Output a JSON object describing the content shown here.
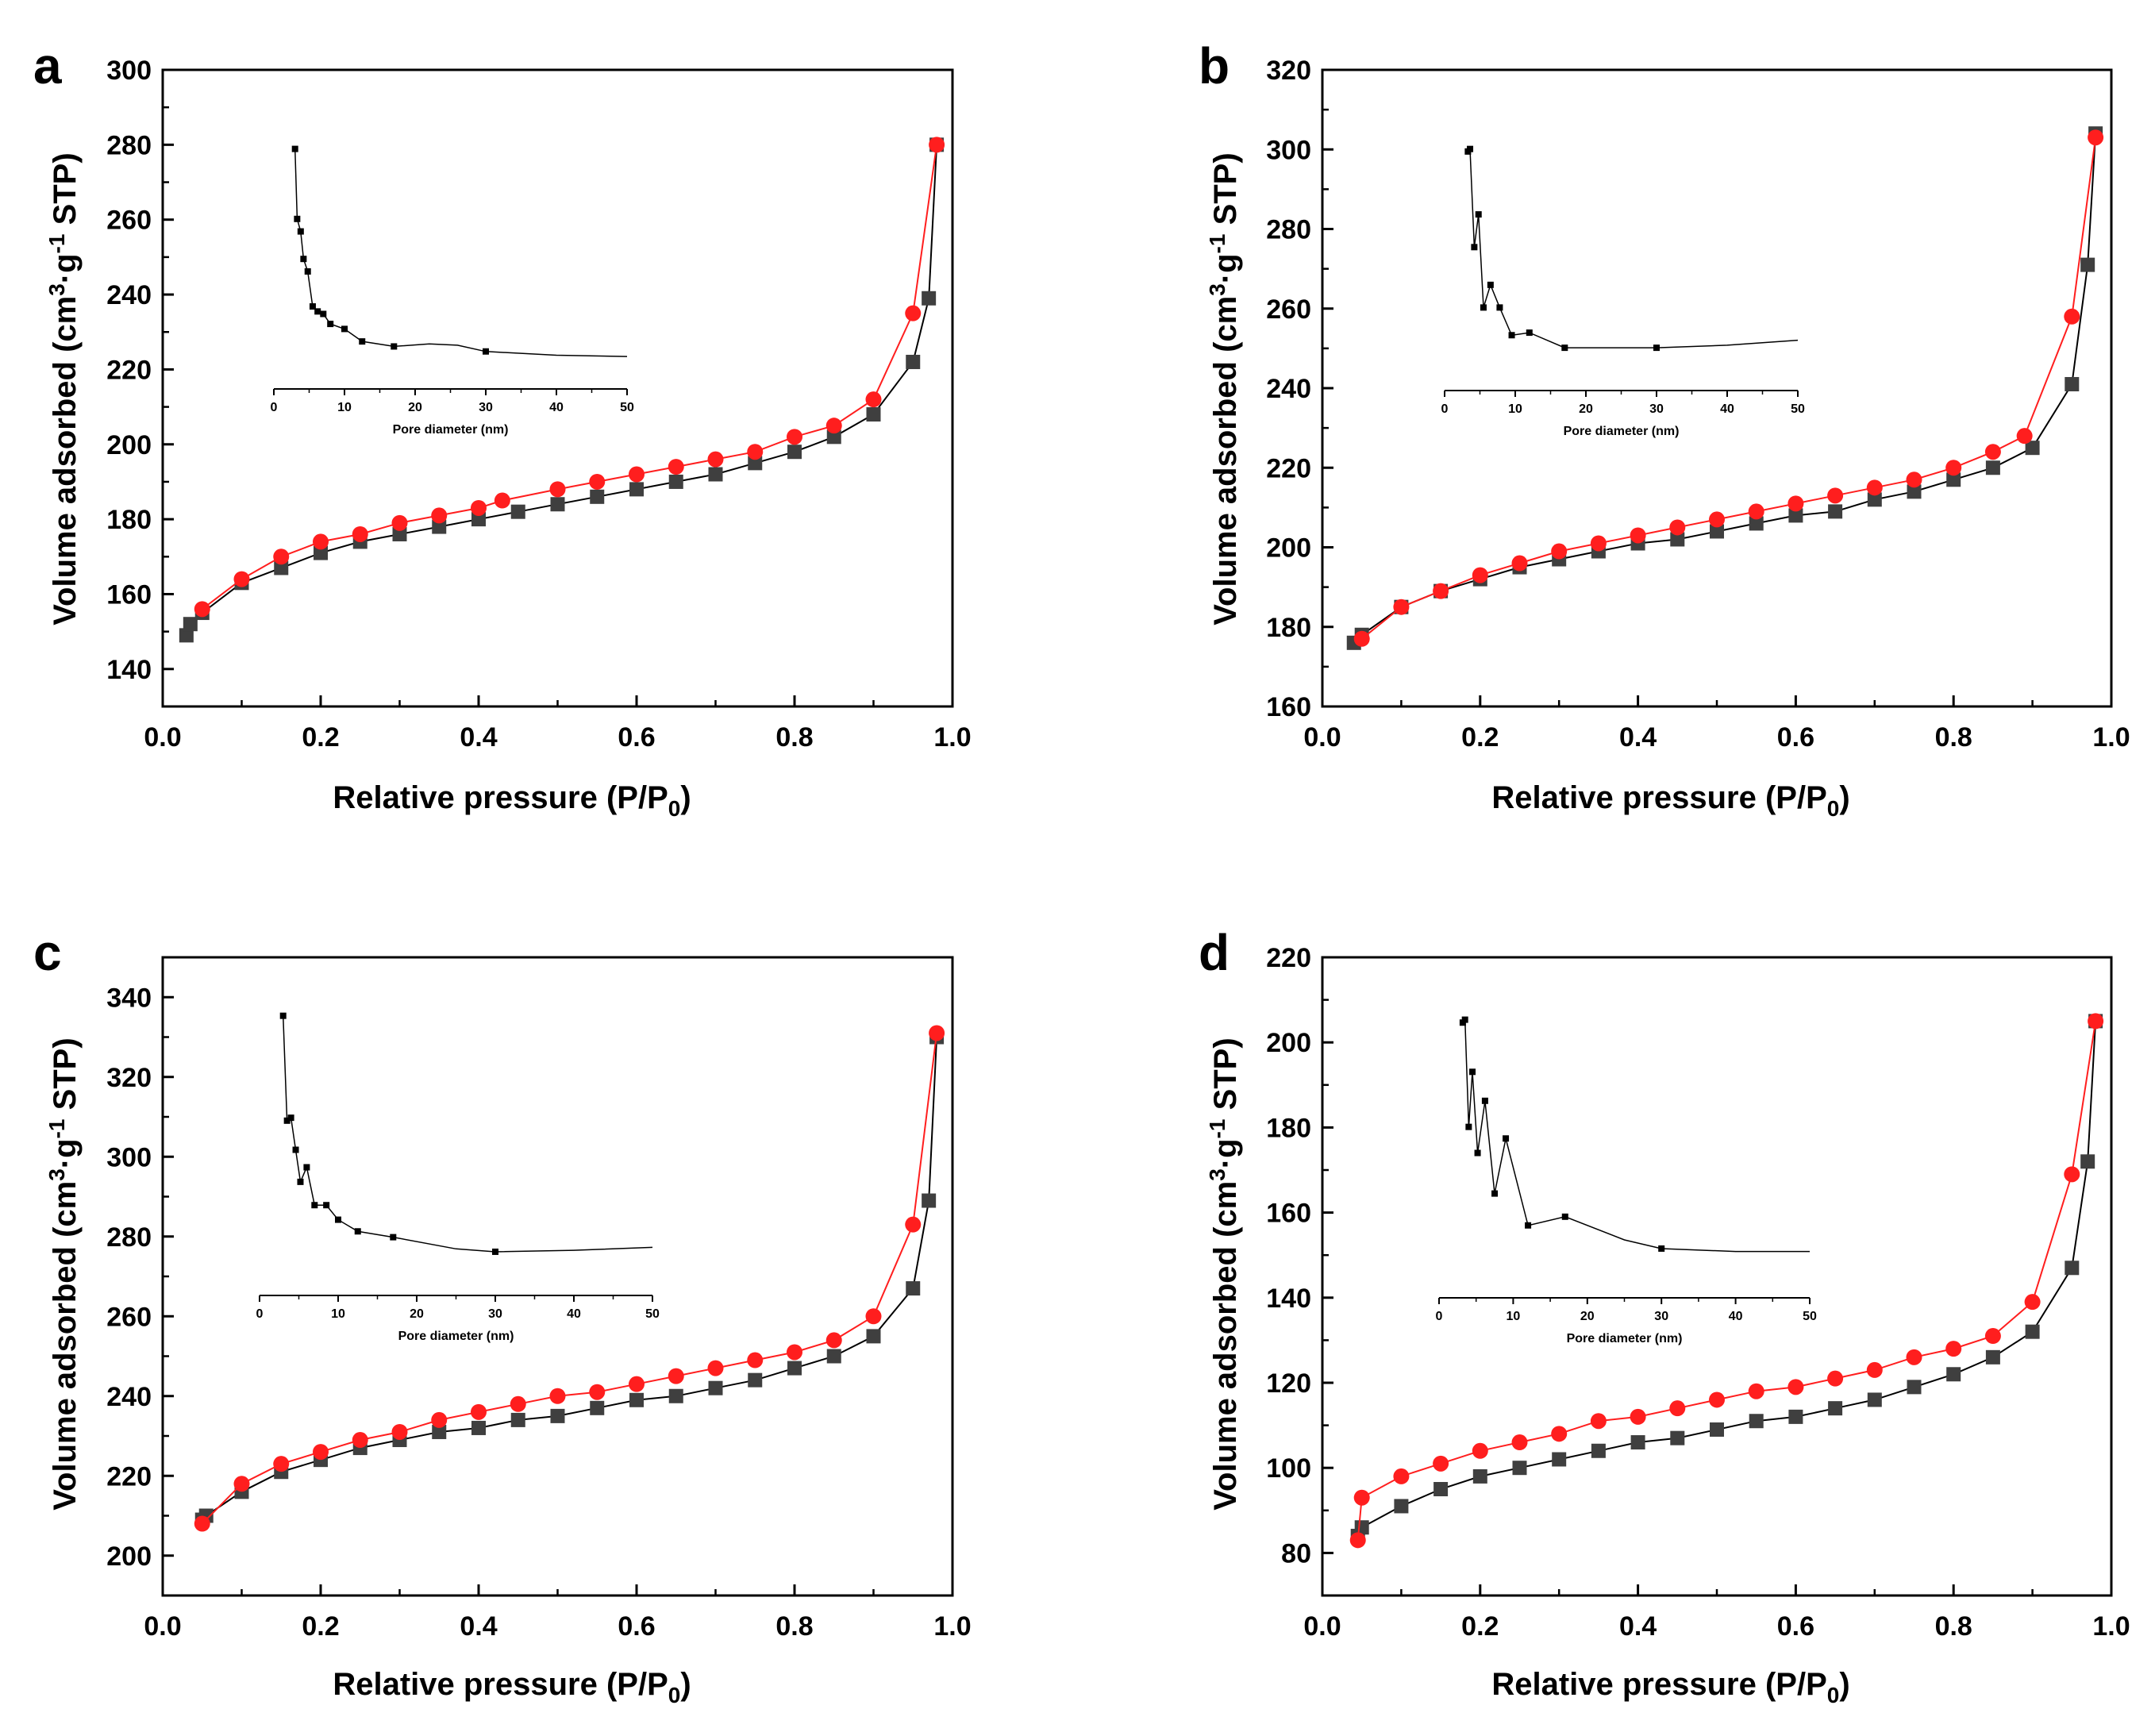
{
  "panels": [
    {
      "letter": "a",
      "chart_data": {
        "type": "line",
        "xlabel": {
          "main": "Relative pressure (P/P",
          "sub": "0",
          "end": ")"
        },
        "ylabel": {
          "main": "Volume adsorbed (cm",
          "sup1": "3",
          "mid": "·g",
          "sup2": "-1",
          "end": " STP)"
        },
        "xlim": [
          0.0,
          1.0
        ],
        "ylim": [
          130,
          300
        ],
        "xticks": [
          0.0,
          0.2,
          0.4,
          0.6,
          0.8,
          1.0
        ],
        "yticks": [
          140,
          160,
          180,
          200,
          220,
          240,
          260,
          280,
          300
        ],
        "grid": false,
        "series": [
          {
            "marker": "square",
            "color": "#3f3f3f",
            "line_color": "#000000",
            "x": [
              0.03,
              0.035,
              0.05,
              0.1,
              0.15,
              0.2,
              0.25,
              0.3,
              0.35,
              0.4,
              0.45,
              0.5,
              0.55,
              0.6,
              0.65,
              0.7,
              0.75,
              0.8,
              0.85,
              0.9,
              0.95,
              0.97,
              0.98
            ],
            "y": [
              149,
              152,
              155,
              163,
              167,
              171,
              174,
              176,
              178,
              180,
              182,
              184,
              186,
              188,
              190,
              192,
              195,
              198,
              202,
              208,
              222,
              239,
              280
            ]
          },
          {
            "marker": "circle",
            "color": "#ff1e1e",
            "line_color": "#ff1e1e",
            "x": [
              0.05,
              0.1,
              0.15,
              0.2,
              0.25,
              0.3,
              0.35,
              0.4,
              0.43,
              0.5,
              0.55,
              0.6,
              0.65,
              0.7,
              0.75,
              0.8,
              0.85,
              0.9,
              0.95,
              0.98
            ],
            "y": [
              156,
              164,
              170,
              174,
              176,
              179,
              181,
              183,
              185,
              188,
              190,
              192,
              194,
              196,
              198,
              202,
              205,
              212,
              235,
              280
            ]
          }
        ],
        "inset": {
          "xlabel": "Pore diameter (nm)",
          "xlim": [
            0,
            50
          ],
          "xticks": [
            0,
            10,
            20,
            30,
            40,
            50
          ],
          "ylim": [
            0,
            1
          ],
          "x": [
            3,
            3.3,
            3.8,
            4.2,
            4.8,
            5.5,
            6.2,
            7,
            8,
            10,
            12.5,
            17,
            22,
            26,
            30,
            40,
            50
          ],
          "y": [
            0.96,
            0.68,
            0.63,
            0.52,
            0.47,
            0.33,
            0.31,
            0.3,
            0.26,
            0.24,
            0.19,
            0.17,
            0.18,
            0.175,
            0.15,
            0.135,
            0.13
          ],
          "markers": [
            0,
            1,
            2,
            3,
            4,
            5,
            6,
            7,
            8,
            9,
            10,
            11,
            14
          ]
        }
      }
    },
    {
      "letter": "b",
      "chart_data": {
        "type": "line",
        "xlabel": {
          "main": "Relative pressure (P/P",
          "sub": "0",
          "end": ")"
        },
        "ylabel": {
          "main": "Volume adsorbed (cm",
          "sup1": "3",
          "mid": "·g",
          "sup2": "-1",
          "end": " STP)"
        },
        "xlim": [
          0.0,
          1.0
        ],
        "ylim": [
          160,
          320
        ],
        "xticks": [
          0.0,
          0.2,
          0.4,
          0.6,
          0.8,
          1.0
        ],
        "yticks": [
          160,
          180,
          200,
          220,
          240,
          260,
          280,
          300,
          320
        ],
        "grid": false,
        "series": [
          {
            "marker": "square",
            "color": "#3f3f3f",
            "line_color": "#000000",
            "x": [
              0.04,
              0.05,
              0.1,
              0.15,
              0.2,
              0.25,
              0.3,
              0.35,
              0.4,
              0.45,
              0.5,
              0.55,
              0.6,
              0.65,
              0.7,
              0.75,
              0.8,
              0.85,
              0.9,
              0.95,
              0.97,
              0.98
            ],
            "y": [
              176,
              178,
              185,
              189,
              192,
              195,
              197,
              199,
              201,
              202,
              204,
              206,
              208,
              209,
              212,
              214,
              217,
              220,
              225,
              241,
              271,
              304
            ]
          },
          {
            "marker": "circle",
            "color": "#ff1e1e",
            "line_color": "#ff1e1e",
            "x": [
              0.05,
              0.1,
              0.15,
              0.2,
              0.25,
              0.3,
              0.35,
              0.4,
              0.45,
              0.5,
              0.55,
              0.6,
              0.65,
              0.7,
              0.75,
              0.8,
              0.85,
              0.89,
              0.95,
              0.98
            ],
            "y": [
              177,
              185,
              189,
              193,
              196,
              199,
              201,
              203,
              205,
              207,
              209,
              211,
              213,
              215,
              217,
              220,
              224,
              228,
              258,
              303
            ]
          }
        ],
        "inset": {
          "xlabel": "Pore diameter (nm)",
          "xlim": [
            0,
            50
          ],
          "xticks": [
            0,
            10,
            20,
            30,
            40,
            50
          ],
          "ylim": [
            0,
            1
          ],
          "x": [
            3.3,
            3.6,
            4.2,
            4.8,
            5.5,
            6.5,
            7.8,
            9.5,
            12,
            17,
            25,
            30,
            40,
            50
          ],
          "y": [
            0.95,
            0.96,
            0.57,
            0.7,
            0.33,
            0.42,
            0.33,
            0.22,
            0.23,
            0.17,
            0.17,
            0.17,
            0.18,
            0.2
          ],
          "markers": [
            0,
            1,
            2,
            3,
            4,
            5,
            6,
            7,
            8,
            9,
            11
          ]
        }
      }
    },
    {
      "letter": "c",
      "chart_data": {
        "type": "line",
        "xlabel": {
          "main": "Relative pressure (P/P",
          "sub": "0",
          "end": ")"
        },
        "ylabel": {
          "main": "Volume adsorbed (cm",
          "sup1": "3",
          "mid": "·g",
          "sup2": "-1",
          "end": " STP)"
        },
        "xlim": [
          0.0,
          1.0
        ],
        "ylim": [
          190,
          350
        ],
        "xticks": [
          0.0,
          0.2,
          0.4,
          0.6,
          0.8,
          1.0
        ],
        "yticks": [
          200,
          220,
          240,
          260,
          280,
          300,
          320,
          340
        ],
        "grid": false,
        "series": [
          {
            "marker": "square",
            "color": "#3f3f3f",
            "line_color": "#000000",
            "x": [
              0.05,
              0.055,
              0.1,
              0.15,
              0.2,
              0.25,
              0.3,
              0.35,
              0.4,
              0.45,
              0.5,
              0.55,
              0.6,
              0.65,
              0.7,
              0.75,
              0.8,
              0.85,
              0.9,
              0.95,
              0.97,
              0.98
            ],
            "y": [
              209,
              210,
              216,
              221,
              224,
              227,
              229,
              231,
              232,
              234,
              235,
              237,
              239,
              240,
              242,
              244,
              247,
              250,
              255,
              267,
              289,
              330
            ]
          },
          {
            "marker": "circle",
            "color": "#ff1e1e",
            "line_color": "#ff1e1e",
            "x": [
              0.05,
              0.1,
              0.15,
              0.2,
              0.25,
              0.3,
              0.35,
              0.4,
              0.45,
              0.5,
              0.55,
              0.6,
              0.65,
              0.7,
              0.75,
              0.8,
              0.85,
              0.9,
              0.95,
              0.98
            ],
            "y": [
              208,
              218,
              223,
              226,
              229,
              231,
              234,
              236,
              238,
              240,
              241,
              243,
              245,
              247,
              249,
              251,
              254,
              260,
              283,
              331
            ]
          }
        ],
        "inset": {
          "xlabel": "Pore diameter (nm)",
          "xlim": [
            0,
            50
          ],
          "xticks": [
            0,
            10,
            20,
            30,
            40,
            50
          ],
          "ylim": [
            0,
            1
          ],
          "x": [
            3,
            3.5,
            4,
            4.6,
            5.2,
            6,
            7,
            8.5,
            10,
            12.5,
            17,
            25,
            30,
            40,
            50
          ],
          "y": [
            0.96,
            0.6,
            0.61,
            0.5,
            0.39,
            0.44,
            0.31,
            0.31,
            0.26,
            0.22,
            0.2,
            0.16,
            0.15,
            0.155,
            0.165
          ],
          "markers": [
            0,
            1,
            2,
            3,
            4,
            5,
            6,
            7,
            8,
            9,
            10,
            12
          ]
        }
      }
    },
    {
      "letter": "d",
      "chart_data": {
        "type": "line",
        "xlabel": {
          "main": "Relative pressure (P/P",
          "sub": "0",
          "end": ")"
        },
        "ylabel": {
          "main": "Volume adsorbed (cm",
          "sup1": "3",
          "mid": "·g",
          "sup2": "-1",
          "end": " STP)"
        },
        "xlim": [
          0.0,
          1.0
        ],
        "ylim": [
          70,
          220
        ],
        "xticks": [
          0.0,
          0.2,
          0.4,
          0.6,
          0.8,
          1.0
        ],
        "yticks": [
          80,
          100,
          120,
          140,
          160,
          180,
          200,
          220
        ],
        "grid": false,
        "series": [
          {
            "marker": "square",
            "color": "#3f3f3f",
            "line_color": "#000000",
            "x": [
              0.045,
              0.05,
              0.1,
              0.15,
              0.2,
              0.25,
              0.3,
              0.35,
              0.4,
              0.45,
              0.5,
              0.55,
              0.6,
              0.65,
              0.7,
              0.75,
              0.8,
              0.85,
              0.9,
              0.95,
              0.97,
              0.98
            ],
            "y": [
              84,
              86,
              91,
              95,
              98,
              100,
              102,
              104,
              106,
              107,
              109,
              111,
              112,
              114,
              116,
              119,
              122,
              126,
              132,
              147,
              172,
              205
            ]
          },
          {
            "marker": "circle",
            "color": "#ff1e1e",
            "line_color": "#ff1e1e",
            "x": [
              0.045,
              0.05,
              0.1,
              0.15,
              0.2,
              0.25,
              0.3,
              0.35,
              0.4,
              0.45,
              0.5,
              0.55,
              0.6,
              0.65,
              0.7,
              0.75,
              0.8,
              0.85,
              0.9,
              0.95,
              0.98
            ],
            "y": [
              83,
              93,
              98,
              101,
              104,
              106,
              108,
              111,
              112,
              114,
              116,
              118,
              119,
              121,
              123,
              126,
              128,
              131,
              139,
              169,
              205
            ]
          }
        ],
        "inset": {
          "xlabel": "Pore diameter (nm)",
          "xlim": [
            0,
            50
          ],
          "xticks": [
            0,
            10,
            20,
            30,
            40,
            50
          ],
          "ylim": [
            0,
            1
          ],
          "x": [
            3.2,
            3.5,
            4,
            4.5,
            5.2,
            6.2,
            7.5,
            9,
            12,
            17,
            25,
            30,
            40,
            50
          ],
          "y": [
            0.95,
            0.96,
            0.59,
            0.78,
            0.5,
            0.68,
            0.36,
            0.55,
            0.25,
            0.28,
            0.2,
            0.17,
            0.16,
            0.16
          ],
          "markers": [
            0,
            1,
            2,
            3,
            4,
            5,
            6,
            7,
            8,
            9,
            11
          ]
        }
      }
    }
  ]
}
